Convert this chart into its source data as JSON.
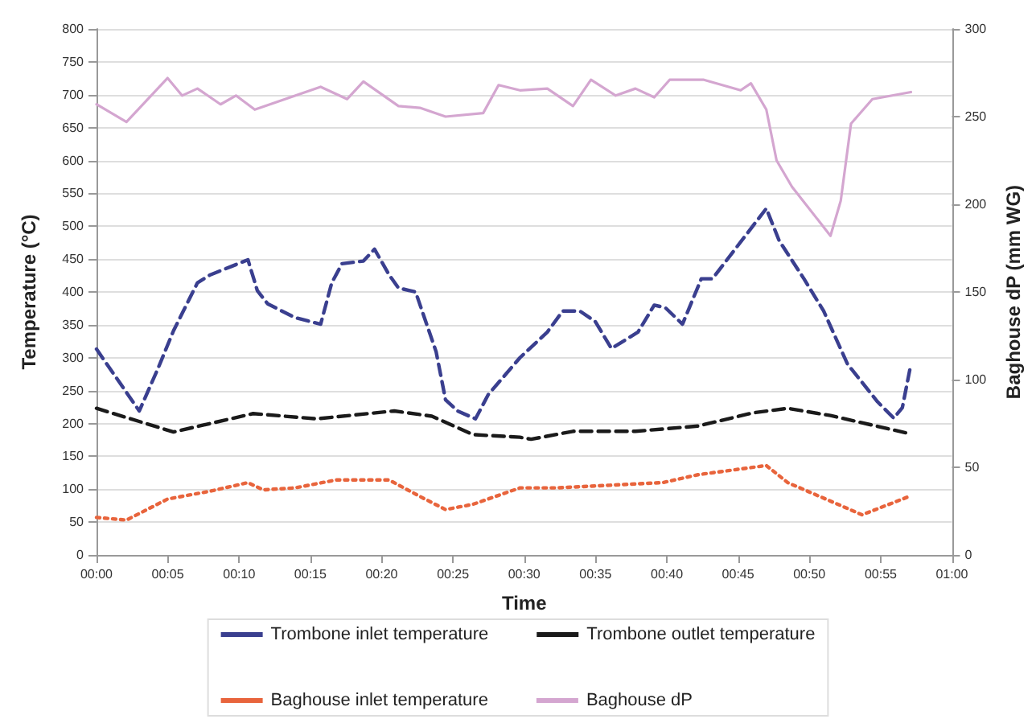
{
  "chart_data": {
    "type": "line",
    "xlabel": "Time",
    "ylabel": "Temperature (°C)",
    "y2label": "Baghouse dP (mm WG)",
    "xlim": [
      0,
      1
    ],
    "xticks": [
      {
        "value": 0,
        "label": "00:00"
      },
      {
        "value": 0.0833,
        "label": "00:05"
      },
      {
        "value": 0.1667,
        "label": "00:10"
      },
      {
        "value": 0.25,
        "label": "00:15"
      },
      {
        "value": 0.3333,
        "label": "00:20"
      },
      {
        "value": 0.4167,
        "label": "00:25"
      },
      {
        "value": 0.5,
        "label": "00:30"
      },
      {
        "value": 0.5833,
        "label": "00:35"
      },
      {
        "value": 0.6667,
        "label": "00:40"
      },
      {
        "value": 0.75,
        "label": "00:45"
      },
      {
        "value": 0.8333,
        "label": "00:50"
      },
      {
        "value": 0.9167,
        "label": "00:55"
      },
      {
        "value": 1,
        "label": "01:00"
      }
    ],
    "ylim": [
      0,
      800
    ],
    "yticks": [
      0,
      50,
      100,
      150,
      200,
      250,
      300,
      350,
      400,
      450,
      500,
      550,
      600,
      650,
      700,
      750,
      800
    ],
    "y2lim": [
      0,
      300
    ],
    "y2ticks": [
      0,
      50,
      100,
      150,
      200,
      250,
      300
    ],
    "grid": "y",
    "legend": "bottom",
    "marker": "none",
    "series": [
      {
        "name": "Trombone inlet temperature",
        "color": "#3a3f8f",
        "line_style": "dashed",
        "x": [
          0,
          0.05,
          0.072,
          0.09,
          0.118,
          0.133,
          0.158,
          0.177,
          0.188,
          0.2,
          0.232,
          0.262,
          0.275,
          0.287,
          0.312,
          0.325,
          0.342,
          0.353,
          0.373,
          0.397,
          0.408,
          0.422,
          0.443,
          0.458,
          0.495,
          0.527,
          0.545,
          0.565,
          0.583,
          0.602,
          0.633,
          0.652,
          0.665,
          0.685,
          0.707,
          0.72,
          0.783,
          0.798,
          0.827,
          0.85,
          0.878,
          0.913,
          0.932,
          0.942,
          0.952
        ],
        "values": [
          313,
          219,
          284,
          341,
          414,
          426,
          439,
          449,
          402,
          382,
          361,
          351,
          414,
          443,
          447,
          465,
          426,
          406,
          400,
          309,
          236,
          219,
          207,
          244,
          300,
          339,
          371,
          371,
          355,
          314,
          339,
          380,
          376,
          351,
          420,
          420,
          527,
          478,
          420,
          371,
          290,
          233,
          208,
          224,
          290
        ]
      },
      {
        "name": "Trombone outlet temperature",
        "color": "#1a1a1a",
        "line_style": "dashed",
        "x": [
          0,
          0.09,
          0.183,
          0.257,
          0.348,
          0.392,
          0.44,
          0.495,
          0.508,
          0.557,
          0.63,
          0.703,
          0.767,
          0.808,
          0.858,
          0.952
        ],
        "values": [
          223,
          187,
          215,
          207,
          219,
          211,
          183,
          179,
          176,
          188,
          188,
          196,
          216,
          223,
          212,
          184
        ]
      },
      {
        "name": "Baghouse inlet temperature",
        "color": "#e8643c",
        "line_style": "dotted",
        "x": [
          0,
          0.035,
          0.083,
          0.133,
          0.177,
          0.195,
          0.232,
          0.28,
          0.342,
          0.378,
          0.408,
          0.44,
          0.495,
          0.538,
          0.6,
          0.662,
          0.703,
          0.783,
          0.808,
          0.895,
          0.952
        ],
        "values": [
          57,
          53,
          85,
          97,
          110,
          99,
          102,
          114,
          114,
          89,
          69,
          77,
          102,
          102,
          106,
          110,
          122,
          136,
          110,
          61,
          90
        ]
      },
      {
        "name": "Baghouse dP",
        "color": "#d4a6d0",
        "line_style": "solid",
        "axis": "y2",
        "x": [
          0,
          0.035,
          0.083,
          0.1,
          0.118,
          0.145,
          0.163,
          0.185,
          0.262,
          0.293,
          0.312,
          0.353,
          0.378,
          0.408,
          0.452,
          0.47,
          0.495,
          0.527,
          0.557,
          0.578,
          0.607,
          0.63,
          0.652,
          0.67,
          0.71,
          0.753,
          0.765,
          0.783,
          0.795,
          0.813,
          0.858,
          0.87,
          0.882,
          0.907,
          0.952
        ],
        "values": [
          257,
          247,
          272,
          262,
          266,
          257,
          262,
          254,
          267,
          260,
          270,
          256,
          255,
          250,
          252,
          268,
          265,
          266,
          256,
          271,
          262,
          266,
          261,
          271,
          271,
          265,
          269,
          254,
          225,
          210,
          182,
          202,
          246,
          260,
          264
        ]
      }
    ]
  }
}
